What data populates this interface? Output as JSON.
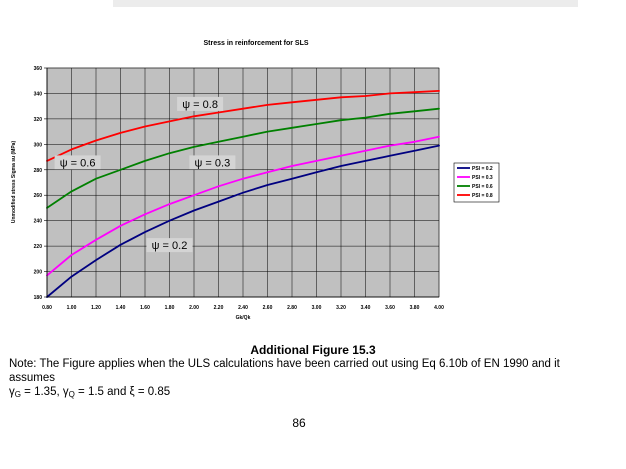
{
  "chart_data": {
    "type": "line",
    "title": "Stress in reinforcement for SLS",
    "xlabel": "Gk/Qk",
    "ylabel": "Unmodified stress Sigma su (MPa)",
    "xlim": [
      0.8,
      4.0
    ],
    "ylim": [
      180,
      360
    ],
    "x_ticks": [
      0.8,
      1.0,
      1.2,
      1.4,
      1.6,
      1.8,
      2.0,
      2.2,
      2.4,
      2.6,
      2.8,
      3.0,
      3.2,
      3.4,
      3.6,
      3.8,
      4.0
    ],
    "x_tick_labels": [
      "0.80",
      "1.00",
      "1.20",
      "1.40",
      "1.60",
      "1.80",
      "2.00",
      "2.20",
      "2.40",
      "2.60",
      "2.80",
      "3.00",
      "3.20",
      "3.40",
      "3.60",
      "3.80",
      "4.00"
    ],
    "y_ticks": [
      180,
      200,
      220,
      240,
      260,
      280,
      300,
      320,
      340,
      360
    ],
    "grid": true,
    "plot_background": "#c0c0c0",
    "legend_position": "right",
    "x": [
      0.8,
      1.0,
      1.2,
      1.4,
      1.6,
      1.8,
      2.0,
      2.2,
      2.4,
      2.6,
      2.8,
      3.0,
      3.2,
      3.4,
      3.6,
      3.8,
      4.0
    ],
    "series": [
      {
        "name": "PSI = 0.2",
        "color": "#000080",
        "values": [
          180,
          196,
          209,
          221,
          231,
          240,
          248,
          255,
          262,
          268,
          273,
          278,
          283,
          287,
          291,
          295,
          299
        ]
      },
      {
        "name": "PSI = 0.3",
        "color": "#ff00ff",
        "values": [
          197,
          213,
          225,
          236,
          245,
          253,
          260,
          267,
          273,
          278,
          283,
          287,
          291,
          295,
          299,
          302,
          306
        ]
      },
      {
        "name": "PSI = 0.6",
        "color": "#008000",
        "values": [
          250,
          263,
          273,
          280,
          287,
          293,
          298,
          302,
          306,
          310,
          313,
          316,
          319,
          321,
          324,
          326,
          328
        ]
      },
      {
        "name": "PSI = 0.8",
        "color": "#ff0000",
        "values": [
          287,
          296,
          303,
          309,
          314,
          318,
          322,
          325,
          328,
          331,
          333,
          335,
          337,
          338,
          340,
          341,
          342
        ]
      }
    ],
    "annotations": [
      {
        "text": "ψ = 0.8",
        "x": 2.05,
        "y": 331
      },
      {
        "text": "ψ = 0.6",
        "x": 1.05,
        "y": 285
      },
      {
        "text": "ψ = 0.3",
        "x": 2.15,
        "y": 285
      },
      {
        "text": "ψ = 0.2",
        "x": 1.8,
        "y": 220
      }
    ]
  },
  "figure": {
    "caption": "Additional Figure 15.3",
    "note_text": "Note: The Figure applies when the ULS calculations have been carried out using Eq 6.10b of EN 1990 and it assumes",
    "gamma_g_symbol": "γ",
    "gamma_g_sub": "G",
    "gamma_g_value": " = 1.35, ",
    "gamma_q_symbol": "γ",
    "gamma_q_sub": "Q",
    "gamma_q_value": " = 1.5 and  ",
    "xi_text": "ξ = 0.85",
    "page_number": "86"
  }
}
